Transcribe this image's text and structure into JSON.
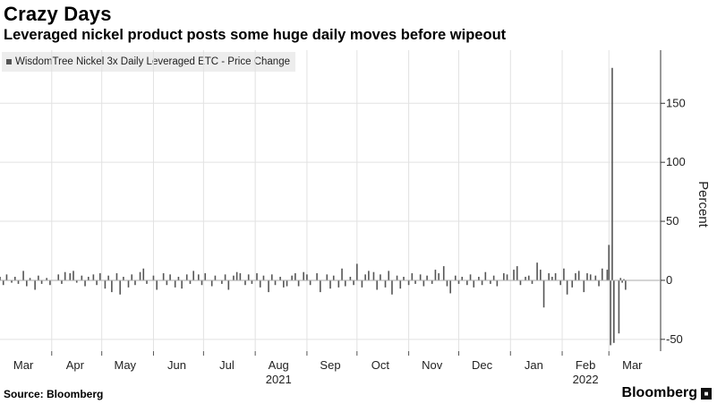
{
  "header": {
    "title": "Crazy Days",
    "subtitle": "Leveraged nickel product posts some huge daily moves before wipeout"
  },
  "legend": {
    "series_name": "WisdomTree Nickel 3x Daily Leveraged ETC - Price Change",
    "swatch_color": "#555555"
  },
  "footer": {
    "source": "Source: Bloomberg",
    "brand": "Bloomberg"
  },
  "chart_data": {
    "type": "bar",
    "title": "Crazy Days",
    "subtitle": "Leveraged nickel product posts some huge daily moves before wipeout",
    "ylabel": "Percent",
    "xlabel": "",
    "ylim": [
      -60,
      195
    ],
    "yticks": [
      -50,
      0,
      50,
      100,
      150
    ],
    "ytick_labels": [
      "-50",
      "0",
      "50",
      "100",
      "150"
    ],
    "y_axis_side": "right",
    "grid": true,
    "legend_placement": "top-left",
    "bar_color": "#555555",
    "x_range": [
      "2021-03-01",
      "2022-03-15"
    ],
    "month_labels": [
      {
        "date": "2021-03-15",
        "label": "Mar"
      },
      {
        "date": "2021-04-15",
        "label": "Apr"
      },
      {
        "date": "2021-05-15",
        "label": "May"
      },
      {
        "date": "2021-06-15",
        "label": "Jun"
      },
      {
        "date": "2021-07-15",
        "label": "Jul"
      },
      {
        "date": "2021-08-15",
        "label": "Aug"
      },
      {
        "date": "2021-09-15",
        "label": "Sep"
      },
      {
        "date": "2021-10-15",
        "label": "Oct"
      },
      {
        "date": "2021-11-15",
        "label": "Nov"
      },
      {
        "date": "2021-12-15",
        "label": "Dec"
      },
      {
        "date": "2022-01-15",
        "label": "Jan"
      },
      {
        "date": "2022-02-15",
        "label": "Feb"
      },
      {
        "date": "2022-03-15",
        "label": "Mar"
      }
    ],
    "year_labels": [
      {
        "date": "2021-08-15",
        "label": "2021"
      },
      {
        "date": "2022-02-15",
        "label": "2022"
      }
    ],
    "gridline_dates": [
      "2021-04-01",
      "2021-05-01",
      "2021-06-01",
      "2021-07-01",
      "2021-08-01",
      "2021-09-01",
      "2021-10-01",
      "2021-11-01",
      "2021-12-01",
      "2022-01-01",
      "2022-02-01",
      "2022-03-01"
    ],
    "series": [
      {
        "name": "WisdomTree Nickel 3x Daily Leveraged ETC - Price Change",
        "points": [
          {
            "x": "2021-03-01",
            "y": 3
          },
          {
            "x": "2021-03-03",
            "y": -4
          },
          {
            "x": "2021-03-05",
            "y": 5
          },
          {
            "x": "2021-03-08",
            "y": -2
          },
          {
            "x": "2021-03-10",
            "y": 3
          },
          {
            "x": "2021-03-12",
            "y": -3
          },
          {
            "x": "2021-03-15",
            "y": 8
          },
          {
            "x": "2021-03-17",
            "y": -5
          },
          {
            "x": "2021-03-19",
            "y": 2
          },
          {
            "x": "2021-03-22",
            "y": -8
          },
          {
            "x": "2021-03-24",
            "y": 4
          },
          {
            "x": "2021-03-26",
            "y": -3
          },
          {
            "x": "2021-03-29",
            "y": 2
          },
          {
            "x": "2021-03-31",
            "y": -4
          },
          {
            "x": "2021-04-05",
            "y": 5
          },
          {
            "x": "2021-04-07",
            "y": -3
          },
          {
            "x": "2021-04-09",
            "y": 7
          },
          {
            "x": "2021-04-12",
            "y": 6
          },
          {
            "x": "2021-04-14",
            "y": 8
          },
          {
            "x": "2021-04-16",
            "y": -2
          },
          {
            "x": "2021-04-19",
            "y": 4
          },
          {
            "x": "2021-04-21",
            "y": -5
          },
          {
            "x": "2021-04-23",
            "y": 3
          },
          {
            "x": "2021-04-26",
            "y": 5
          },
          {
            "x": "2021-04-28",
            "y": -4
          },
          {
            "x": "2021-04-30",
            "y": 6
          },
          {
            "x": "2021-05-03",
            "y": -7
          },
          {
            "x": "2021-05-05",
            "y": 4
          },
          {
            "x": "2021-05-07",
            "y": -10
          },
          {
            "x": "2021-05-10",
            "y": 6
          },
          {
            "x": "2021-05-12",
            "y": -12
          },
          {
            "x": "2021-05-14",
            "y": 3
          },
          {
            "x": "2021-05-17",
            "y": -6
          },
          {
            "x": "2021-05-19",
            "y": 5
          },
          {
            "x": "2021-05-21",
            "y": -4
          },
          {
            "x": "2021-05-24",
            "y": 7
          },
          {
            "x": "2021-05-26",
            "y": 10
          },
          {
            "x": "2021-05-28",
            "y": -3
          },
          {
            "x": "2021-06-01",
            "y": 4
          },
          {
            "x": "2021-06-03",
            "y": -8
          },
          {
            "x": "2021-06-07",
            "y": 6
          },
          {
            "x": "2021-06-09",
            "y": -4
          },
          {
            "x": "2021-06-11",
            "y": 5
          },
          {
            "x": "2021-06-14",
            "y": -6
          },
          {
            "x": "2021-06-16",
            "y": 3
          },
          {
            "x": "2021-06-18",
            "y": -7
          },
          {
            "x": "2021-06-21",
            "y": 5
          },
          {
            "x": "2021-06-23",
            "y": -3
          },
          {
            "x": "2021-06-25",
            "y": 8
          },
          {
            "x": "2021-06-28",
            "y": 5
          },
          {
            "x": "2021-06-30",
            "y": -4
          },
          {
            "x": "2021-07-02",
            "y": 6
          },
          {
            "x": "2021-07-06",
            "y": -5
          },
          {
            "x": "2021-07-08",
            "y": 4
          },
          {
            "x": "2021-07-12",
            "y": -3
          },
          {
            "x": "2021-07-14",
            "y": 5
          },
          {
            "x": "2021-07-16",
            "y": -8
          },
          {
            "x": "2021-07-19",
            "y": 4
          },
          {
            "x": "2021-07-21",
            "y": 7
          },
          {
            "x": "2021-07-23",
            "y": 6
          },
          {
            "x": "2021-07-26",
            "y": -4
          },
          {
            "x": "2021-07-28",
            "y": 5
          },
          {
            "x": "2021-07-30",
            "y": -3
          },
          {
            "x": "2021-08-02",
            "y": 6
          },
          {
            "x": "2021-08-04",
            "y": -6
          },
          {
            "x": "2021-08-06",
            "y": 4
          },
          {
            "x": "2021-08-09",
            "y": -10
          },
          {
            "x": "2021-08-11",
            "y": 5
          },
          {
            "x": "2021-08-13",
            "y": -4
          },
          {
            "x": "2021-08-16",
            "y": 3
          },
          {
            "x": "2021-08-18",
            "y": -6
          },
          {
            "x": "2021-08-20",
            "y": -5
          },
          {
            "x": "2021-08-23",
            "y": 4
          },
          {
            "x": "2021-08-25",
            "y": 6
          },
          {
            "x": "2021-08-27",
            "y": -5
          },
          {
            "x": "2021-08-30",
            "y": 7
          },
          {
            "x": "2021-09-01",
            "y": 5
          },
          {
            "x": "2021-09-03",
            "y": -4
          },
          {
            "x": "2021-09-07",
            "y": 6
          },
          {
            "x": "2021-09-09",
            "y": -10
          },
          {
            "x": "2021-09-13",
            "y": 5
          },
          {
            "x": "2021-09-15",
            "y": -7
          },
          {
            "x": "2021-09-17",
            "y": 4
          },
          {
            "x": "2021-09-20",
            "y": -6
          },
          {
            "x": "2021-09-22",
            "y": 10
          },
          {
            "x": "2021-09-24",
            "y": -5
          },
          {
            "x": "2021-09-27",
            "y": 3
          },
          {
            "x": "2021-09-29",
            "y": -4
          },
          {
            "x": "2021-10-01",
            "y": 14
          },
          {
            "x": "2021-10-04",
            "y": -6
          },
          {
            "x": "2021-10-06",
            "y": 5
          },
          {
            "x": "2021-10-08",
            "y": 8
          },
          {
            "x": "2021-10-11",
            "y": 7
          },
          {
            "x": "2021-10-13",
            "y": -8
          },
          {
            "x": "2021-10-15",
            "y": 5
          },
          {
            "x": "2021-10-18",
            "y": -6
          },
          {
            "x": "2021-10-20",
            "y": 8
          },
          {
            "x": "2021-10-22",
            "y": -12
          },
          {
            "x": "2021-10-25",
            "y": 4
          },
          {
            "x": "2021-10-27",
            "y": -7
          },
          {
            "x": "2021-10-29",
            "y": 3
          },
          {
            "x": "2021-11-01",
            "y": -4
          },
          {
            "x": "2021-11-03",
            "y": 6
          },
          {
            "x": "2021-11-05",
            "y": -3
          },
          {
            "x": "2021-11-08",
            "y": 5
          },
          {
            "x": "2021-11-10",
            "y": -5
          },
          {
            "x": "2021-11-12",
            "y": 4
          },
          {
            "x": "2021-11-15",
            "y": -3
          },
          {
            "x": "2021-11-17",
            "y": 9
          },
          {
            "x": "2021-11-19",
            "y": 6
          },
          {
            "x": "2021-11-22",
            "y": 12
          },
          {
            "x": "2021-11-24",
            "y": -5
          },
          {
            "x": "2021-11-26",
            "y": -11
          },
          {
            "x": "2021-11-29",
            "y": 4
          },
          {
            "x": "2021-12-01",
            "y": -3
          },
          {
            "x": "2021-12-03",
            "y": 3
          },
          {
            "x": "2021-12-06",
            "y": -4
          },
          {
            "x": "2021-12-08",
            "y": 5
          },
          {
            "x": "2021-12-10",
            "y": -6
          },
          {
            "x": "2021-12-13",
            "y": 3
          },
          {
            "x": "2021-12-15",
            "y": -4
          },
          {
            "x": "2021-12-17",
            "y": 7
          },
          {
            "x": "2021-12-20",
            "y": -3
          },
          {
            "x": "2021-12-22",
            "y": 4
          },
          {
            "x": "2021-12-24",
            "y": -5
          },
          {
            "x": "2021-12-28",
            "y": 6
          },
          {
            "x": "2021-12-30",
            "y": 5
          },
          {
            "x": "2022-01-03",
            "y": 9
          },
          {
            "x": "2022-01-05",
            "y": 12
          },
          {
            "x": "2022-01-07",
            "y": -4
          },
          {
            "x": "2022-01-10",
            "y": 3
          },
          {
            "x": "2022-01-12",
            "y": 4
          },
          {
            "x": "2022-01-14",
            "y": -3
          },
          {
            "x": "2022-01-17",
            "y": 15
          },
          {
            "x": "2022-01-19",
            "y": 9
          },
          {
            "x": "2022-01-21",
            "y": -23
          },
          {
            "x": "2022-01-24",
            "y": 6
          },
          {
            "x": "2022-01-26",
            "y": 3
          },
          {
            "x": "2022-01-28",
            "y": 6
          },
          {
            "x": "2022-01-31",
            "y": -4
          },
          {
            "x": "2022-02-02",
            "y": 10
          },
          {
            "x": "2022-02-04",
            "y": -12
          },
          {
            "x": "2022-02-07",
            "y": -6
          },
          {
            "x": "2022-02-09",
            "y": 6
          },
          {
            "x": "2022-02-11",
            "y": 8
          },
          {
            "x": "2022-02-14",
            "y": -10
          },
          {
            "x": "2022-02-16",
            "y": 6
          },
          {
            "x": "2022-02-18",
            "y": 5
          },
          {
            "x": "2022-02-21",
            "y": 4
          },
          {
            "x": "2022-02-23",
            "y": -5
          },
          {
            "x": "2022-02-25",
            "y": 10
          },
          {
            "x": "2022-02-28",
            "y": 9
          },
          {
            "x": "2022-03-01",
            "y": 30
          },
          {
            "x": "2022-03-02",
            "y": -55
          },
          {
            "x": "2022-03-03",
            "y": 180
          },
          {
            "x": "2022-03-04",
            "y": -53
          },
          {
            "x": "2022-03-07",
            "y": -45
          },
          {
            "x": "2022-03-08",
            "y": 2
          },
          {
            "x": "2022-03-09",
            "y": -2
          },
          {
            "x": "2022-03-10",
            "y": 1
          },
          {
            "x": "2022-03-11",
            "y": -8
          }
        ]
      }
    ]
  }
}
